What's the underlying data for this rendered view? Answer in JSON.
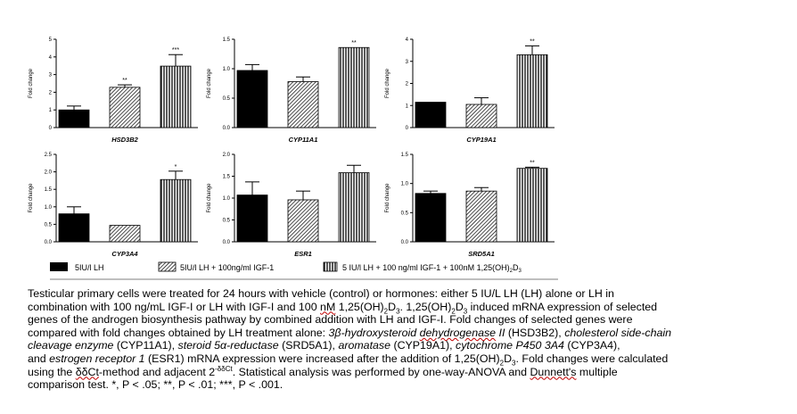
{
  "chart_data": [
    {
      "type": "bar",
      "title": "HSD3B2",
      "ylabel": "Fold change",
      "ylim": [
        0,
        5
      ],
      "yticks": [
        "0",
        "1",
        "2",
        "3",
        "4",
        "5"
      ],
      "values": [
        1.0,
        2.28,
        3.48
      ],
      "errors": [
        0.22,
        0.14,
        0.65
      ],
      "sig": [
        "",
        "**",
        "***"
      ]
    },
    {
      "type": "bar",
      "title": "CYP11A1",
      "ylabel": "Fold change",
      "ylim": [
        0,
        1.5
      ],
      "yticks": [
        "0.0",
        "0.5",
        "1.0",
        "1.5"
      ],
      "values": [
        0.97,
        0.78,
        1.36
      ],
      "errors": [
        0.1,
        0.08,
        0.0
      ],
      "sig": [
        "",
        "",
        "**"
      ]
    },
    {
      "type": "bar",
      "title": "CYP19A1",
      "ylabel": "Fold change",
      "ylim": [
        0,
        4
      ],
      "yticks": [
        "0",
        "1",
        "2",
        "3",
        "4"
      ],
      "values": [
        1.15,
        1.05,
        3.3
      ],
      "errors": [
        0.0,
        0.3,
        0.4
      ],
      "sig": [
        "",
        "",
        "**"
      ]
    },
    {
      "type": "bar",
      "title": "CYP3A4",
      "ylabel": "Fold change",
      "ylim": [
        0,
        2.5
      ],
      "yticks": [
        "0.0",
        "0.5",
        "1.0",
        "1.5",
        "2.0",
        "2.5"
      ],
      "values": [
        0.8,
        0.47,
        1.78
      ],
      "errors": [
        0.2,
        0.0,
        0.24
      ],
      "sig": [
        "",
        "",
        "*"
      ]
    },
    {
      "type": "bar",
      "title": "ESR1",
      "ylabel": "Fold change",
      "ylim": [
        0,
        2
      ],
      "yticks": [
        "0.0",
        "0.5",
        "1.0",
        "1.5",
        "2.0"
      ],
      "values": [
        1.07,
        0.96,
        1.58
      ],
      "errors": [
        0.3,
        0.2,
        0.17
      ],
      "sig": [
        "",
        "",
        ""
      ]
    },
    {
      "type": "bar",
      "title": "SRD5A1",
      "ylabel": "Fold change",
      "ylim": [
        0,
        1.5
      ],
      "yticks": [
        "0.0",
        "0.5",
        "1.0",
        "1.5"
      ],
      "values": [
        0.83,
        0.87,
        1.26
      ],
      "errors": [
        0.04,
        0.06,
        0.02
      ],
      "sig": [
        "",
        "",
        "**"
      ]
    }
  ],
  "legend": [
    {
      "label": "5IU/l LH",
      "fill": "solid"
    },
    {
      "label": "5IU/l LH + 100ng/ml IGF-1",
      "fill": "hatch"
    },
    {
      "label": "5 IU/l LH + 100 ng/ml IGF-1 + 100nM 1,25(OH)",
      "sub": "2",
      "label_end": "D",
      "sub_end": "3",
      "fill": "vstripe"
    }
  ],
  "colors": {
    "bar_solid": "#000000",
    "axis": "#000000",
    "hatch": "#000000"
  },
  "caption": {
    "l1": "Testicular primary cells were treated for 24 hours with vehicle (control) or hormones: either 5 IU/L LH (LH) alone or LH in",
    "l2a": "combination with 100 ng/mL IGF-I or LH with IGF-I and 100 ",
    "l2nm": "nM",
    "l2b": " 1,25(OH)",
    "l2c": "D",
    "l2d": ". 1,25(OH)",
    "l2e": "D",
    "l2f": " induced mRNA expression of selected",
    "l3": "genes of the androgen biosynthesis pathway by combined addition with LH and IGF-I. Fold changes of selected genes were",
    "l4a": "compared with fold changes obtained by LH treatment alone: ",
    "l4b": "3β-hydroxysteroid ",
    "l4c": "dehydrogenase",
    "l4d": " II",
    "l4e": " (HSD3B2), ",
    "l4f": "cholesterol side-chain",
    "l5a": "cleavage enzyme",
    "l5b": " (CYP11A1), ",
    "l5c": "steroid 5α-reductase",
    "l5d": " (SRD5A1), ",
    "l5e": "aromatase",
    "l5f": " (CYP19A1), ",
    "l5g": "cytochrome P450 3A4",
    "l5h": " (CYP3A4),",
    "l6a": "and ",
    "l6b": "estrogen receptor 1",
    "l6c": " (ESR1) mRNA expression were increased after the addition of 1,25(OH)",
    "l6d": "D",
    "l6e": ". Fold changes were calculated",
    "l7a": "using the ",
    "l7b": "δδCt",
    "l7c": "-method and adjacent 2",
    "l7sup": "-δδCt",
    "l7d": ". Statistical analysis was performed by one-way-ANOVA and ",
    "l7e": "Dunnett's",
    "l7f": " multiple",
    "l8": "comparison test. *, P < .05; **, P < .01; ***, P < .001.",
    "sub2": "2",
    "sub3": "3"
  }
}
